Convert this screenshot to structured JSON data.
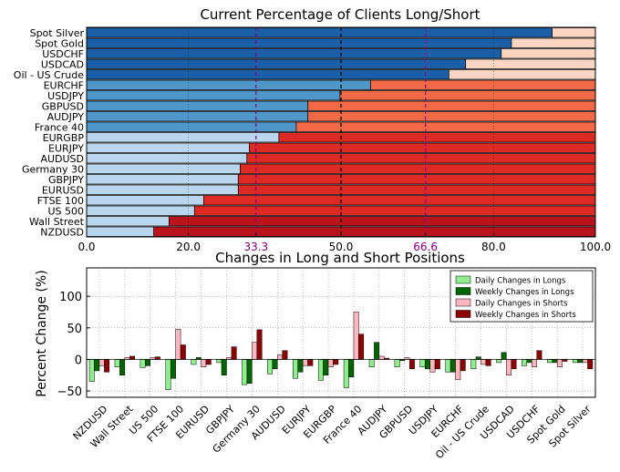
{
  "chart_data": [
    {
      "type": "bar",
      "orientation": "horizontal",
      "stacked": true,
      "title": "Current Percentage of Clients Long/Short",
      "categories": [
        "Spot Silver",
        "Spot Gold",
        "USDCHF",
        "USDCAD",
        "Oil - US Crude",
        "EURCHF",
        "USDJPY",
        "GBPUSD",
        "AUDJPY",
        "France 40",
        "EURGBP",
        "EURJPY",
        "AUDUSD",
        "Germany 30",
        "GBPJPY",
        "EURUSD",
        "FTSE 100",
        "US 500",
        "Wall Street",
        "NZDUSD"
      ],
      "series": [
        {
          "values": [
            91.5,
            83.5,
            81.5,
            74.5,
            71.2,
            55.8,
            49.8,
            43.5,
            43.5,
            41.2,
            37.8,
            32.0,
            31.5,
            30.2,
            29.8,
            29.8,
            23.0,
            21.2,
            16.2,
            13.2
          ]
        },
        {
          "values": [
            8.5,
            16.5,
            18.5,
            25.5,
            28.8,
            44.2,
            50.2,
            56.5,
            56.5,
            58.8,
            62.2,
            68.0,
            68.5,
            69.8,
            70.2,
            70.2,
            77.0,
            78.8,
            83.8,
            86.8
          ]
        }
      ],
      "xlim": [
        0,
        100
      ],
      "xticks": [
        "0.0",
        "20.0",
        "33.3",
        "50.0",
        "66.6",
        "80.0",
        "100.0"
      ],
      "reference_lines": [
        33.3,
        50.0,
        66.6
      ],
      "colors": {
        "long_dark": "#1a5fa8",
        "long_mid": "#4f97c9",
        "long_light": "#b9d6ee",
        "short_pale": "#fcd5c3",
        "short_mid": "#f26a45",
        "short_red": "#de2a24",
        "short_dark": "#b9141b",
        "ref_purple": "#800080"
      }
    },
    {
      "type": "bar",
      "orientation": "vertical",
      "title": "Changes in Long and Short Positions",
      "ylabel": "Percent Change (%)",
      "ylim": [
        -60,
        145
      ],
      "yticks": [
        "100",
        "50",
        "0",
        "−50"
      ],
      "categories": [
        "NZDUSD",
        "Wall Street",
        "US 500",
        "FTSE 100",
        "EURUSD",
        "GBPJPY",
        "Germany 30",
        "AUDUSD",
        "EURJPY",
        "EURGBP",
        "France 40",
        "AUDJPY",
        "GBPUSD",
        "USDJPY",
        "EURCHF",
        "Oil - US Crude",
        "USDCAD",
        "USDCHF",
        "Spot Gold",
        "Spot Silver"
      ],
      "series": [
        {
          "name": "Daily Changes in Longs",
          "color": "#90ee90",
          "values": [
            -35,
            -12,
            -13,
            -48,
            -8,
            -5,
            -40,
            -23,
            -30,
            -33,
            -45,
            -12,
            -12,
            -12,
            -20,
            -15,
            -5,
            -10,
            -5,
            -5
          ]
        },
        {
          "name": "Weekly Changes in Longs",
          "color": "#006400",
          "values": [
            -18,
            -25,
            -10,
            -30,
            3,
            -25,
            -38,
            -15,
            -20,
            -25,
            -28,
            27,
            -2,
            -15,
            -20,
            4,
            11,
            -5,
            -5,
            -5
          ]
        },
        {
          "name": "Daily Changes in Shorts",
          "color": "#ffb6c1",
          "values": [
            -10,
            3,
            3,
            48,
            -12,
            3,
            27,
            7,
            -10,
            -12,
            75,
            5,
            3,
            -20,
            -32,
            -8,
            -25,
            -12,
            -12,
            -5
          ]
        },
        {
          "name": "Weekly Changes in Shorts",
          "color": "#8b0000",
          "values": [
            -20,
            5,
            4,
            23,
            -8,
            20,
            47,
            14,
            -10,
            -8,
            40,
            2,
            -15,
            -15,
            -18,
            -10,
            -15,
            14,
            -3,
            -15
          ]
        }
      ]
    }
  ]
}
